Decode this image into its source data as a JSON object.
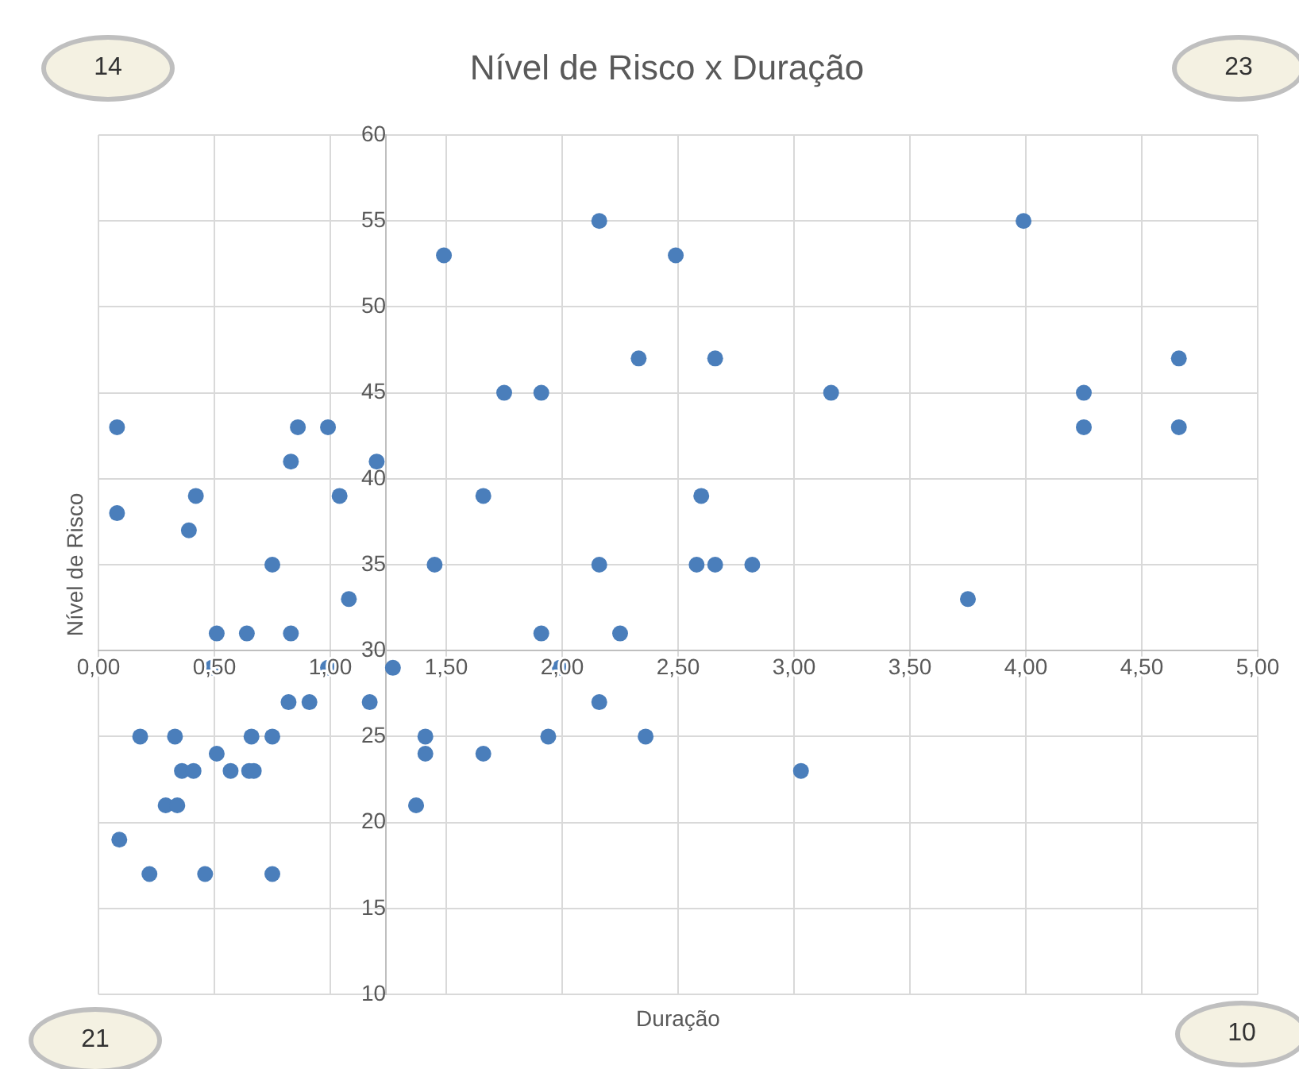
{
  "chart_data": {
    "type": "scatter",
    "title": "Nível de Risco x Duração",
    "xlabel": "Duração",
    "ylabel": "Nível de Risco",
    "annotations": [
      "14",
      "23",
      "21",
      "10"
    ],
    "x": [
      0.08,
      0.08,
      0.42,
      0.39,
      0.86,
      0.99,
      0.83,
      1.2,
      1.04,
      0.75,
      0.51,
      0.64,
      0.83,
      1.08,
      1.45,
      1.49,
      0.49,
      0.99,
      1.27,
      0.82,
      0.91,
      1.17,
      0.18,
      0.33,
      0.66,
      0.75,
      0.51,
      0.36,
      0.41,
      0.57,
      0.65,
      0.67,
      0.29,
      0.34,
      0.09,
      0.22,
      0.46,
      0.75,
      1.37,
      1.41,
      1.41,
      1.66,
      2.16,
      2.49,
      2.33,
      2.66,
      1.75,
      1.91,
      3.16,
      1.66,
      2.6,
      2.16,
      2.58,
      2.66,
      2.82,
      3.75,
      3.99,
      4.25,
      4.25,
      4.66,
      4.66,
      1.91,
      2.25,
      1.99,
      2.16,
      1.94,
      2.36,
      3.03
    ],
    "series": [
      {
        "color": "#4a7ebb",
        "values": [
          43,
          38,
          39,
          37,
          43,
          43,
          41,
          41,
          39,
          35,
          31,
          31,
          31,
          33,
          35,
          53,
          29,
          29,
          29,
          27,
          27,
          27,
          25,
          25,
          25,
          25,
          24,
          23,
          23,
          23,
          23,
          23,
          21,
          21,
          19,
          17,
          17,
          17,
          21,
          25,
          24,
          24,
          55,
          53,
          47,
          47,
          45,
          45,
          45,
          39,
          39,
          35,
          35,
          35,
          35,
          33,
          55,
          45,
          43,
          47,
          43,
          31,
          31,
          29,
          27,
          25,
          25,
          23
        ]
      }
    ],
    "xlim": [
      0,
      5
    ],
    "xticks": [
      {
        "value": 0,
        "label": "0,00"
      },
      {
        "value": 0.5,
        "label": "0,50"
      },
      {
        "value": 1,
        "label": "1,00"
      },
      {
        "value": 1.5,
        "label": "1,50"
      },
      {
        "value": 2,
        "label": "2,00"
      },
      {
        "value": 2.5,
        "label": "2,50"
      },
      {
        "value": 3,
        "label": "3,00"
      },
      {
        "value": 3.5,
        "label": "3,50"
      },
      {
        "value": 4,
        "label": "4,00"
      },
      {
        "value": 4.5,
        "label": "4,50"
      },
      {
        "value": 5,
        "label": "5,00"
      }
    ],
    "ylim": [
      10,
      60
    ],
    "yticks": [
      10,
      15,
      20,
      25,
      30,
      35,
      40,
      45,
      50,
      55,
      60
    ],
    "grid": true,
    "marker": "circle",
    "legend": false
  }
}
